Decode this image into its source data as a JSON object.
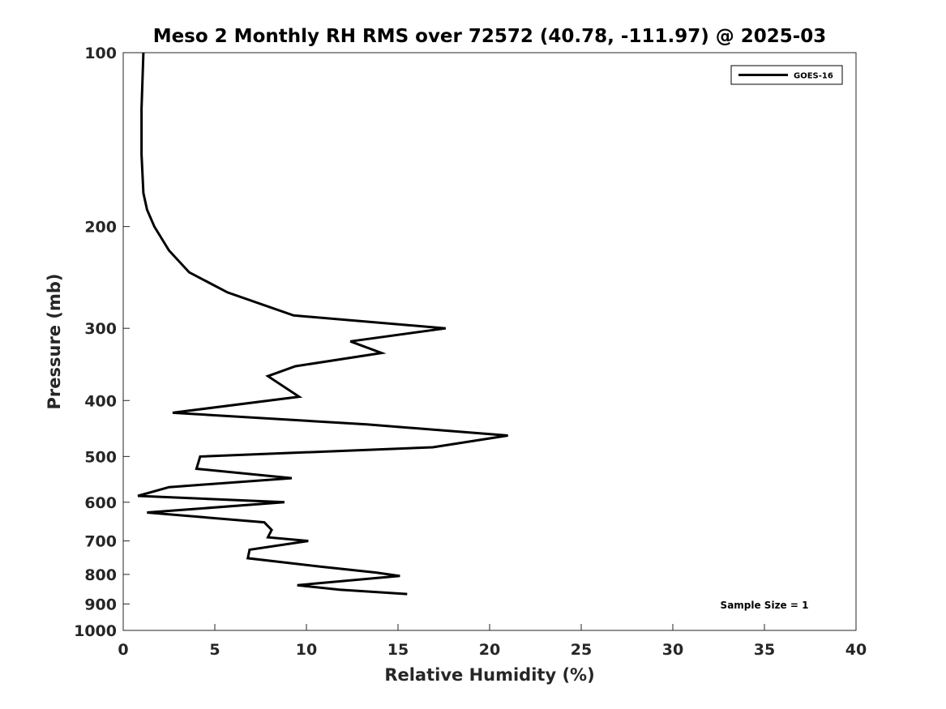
{
  "chart_data": {
    "type": "line",
    "title": "Meso 2 Monthly RH RMS over 72572 (40.78, -111.97) @ 2025-03",
    "xlabel": "Relative Humidity (%)",
    "ylabel": "Pressure (mb)",
    "xlim": [
      0,
      40
    ],
    "ylim": [
      100,
      1000
    ],
    "y_scale": "log",
    "y_reversed": true,
    "x_ticks": [
      "0",
      "5",
      "10",
      "15",
      "20",
      "25",
      "30",
      "35",
      "40"
    ],
    "y_ticks": [
      "100",
      "200",
      "300",
      "400",
      "500",
      "600",
      "700",
      "800",
      "900",
      "1000"
    ],
    "legend_position": "top-right",
    "annotation": "Sample Size = 1",
    "series": [
      {
        "name": "GOES-16",
        "color": "#000000",
        "points": [
          [
            1.1,
            100
          ],
          [
            1.0,
            125
          ],
          [
            1.0,
            150
          ],
          [
            1.1,
            175
          ],
          [
            1.3,
            187
          ],
          [
            1.7,
            200
          ],
          [
            2.5,
            220
          ],
          [
            3.6,
            240
          ],
          [
            5.7,
            260
          ],
          [
            9.3,
            285
          ],
          [
            17.6,
            300
          ],
          [
            12.4,
            316
          ],
          [
            14.1,
            331
          ],
          [
            9.4,
            349
          ],
          [
            7.9,
            363
          ],
          [
            9.6,
            394
          ],
          [
            2.7,
            420
          ],
          [
            13.3,
            440
          ],
          [
            21.0,
            460
          ],
          [
            16.9,
            482
          ],
          [
            4.2,
            500
          ],
          [
            4.0,
            525
          ],
          [
            9.2,
            545
          ],
          [
            2.5,
            565
          ],
          [
            0.8,
            585
          ],
          [
            8.8,
            600
          ],
          [
            1.3,
            625
          ],
          [
            7.7,
            650
          ],
          [
            8.1,
            670
          ],
          [
            7.9,
            690
          ],
          [
            10.1,
            700
          ],
          [
            6.9,
            725
          ],
          [
            6.8,
            750
          ],
          [
            10.7,
            775
          ],
          [
            13.8,
            794
          ],
          [
            15.1,
            805
          ],
          [
            9.5,
            835
          ],
          [
            11.8,
            850
          ],
          [
            15.5,
            865
          ]
        ]
      }
    ]
  }
}
